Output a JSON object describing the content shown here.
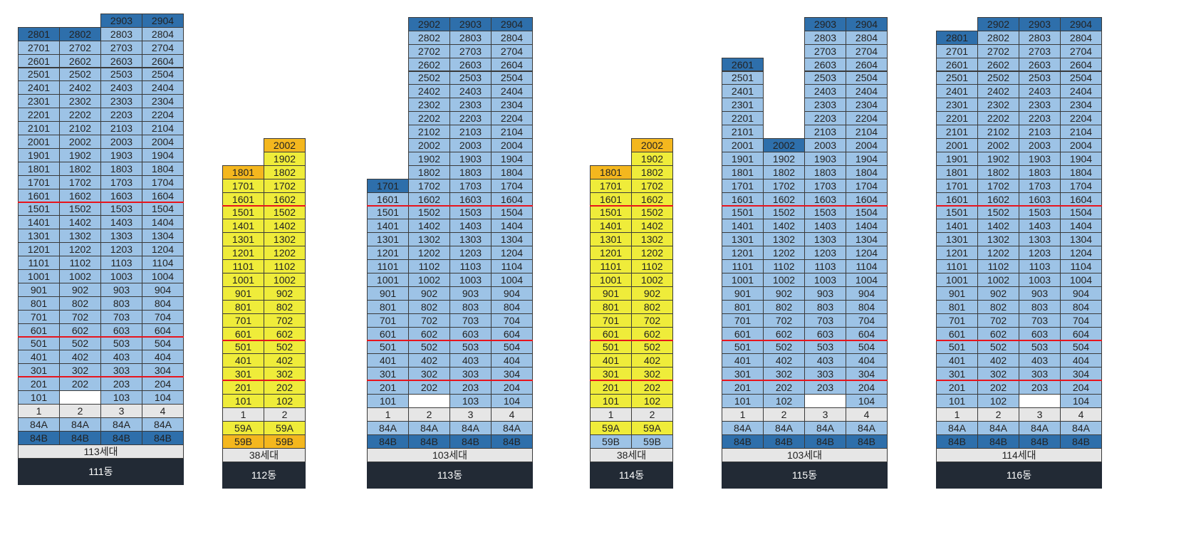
{
  "colors": {
    "unit_light_blue": "#9dc3e6",
    "unit_dark_blue": "#2e6fab",
    "unit_yellow": "#efec3a",
    "unit_orange": "#f4b71e",
    "label_gray": "#e6e6e6",
    "blank": "#ffffff",
    "name_bg": "#222a35",
    "divider_red": "#e8141c"
  },
  "divider_above_floors": [
    15,
    5,
    2
  ],
  "buildings": [
    {
      "name": "111동",
      "households": "113세대",
      "base_color": "unit_light_blue",
      "column_numbers": [
        "1",
        "2",
        "3",
        "4"
      ],
      "column_floors": [
        [
          1,
          28
        ],
        [
          1,
          28
        ],
        [
          1,
          29
        ],
        [
          1,
          29
        ]
      ],
      "highlight": {
        "2801": "unit_dark_blue",
        "2802": "unit_dark_blue",
        "2903": "unit_dark_blue",
        "2904": "unit_dark_blue"
      },
      "blank_units": [
        "102"
      ],
      "type_rows": [
        {
          "labels": [
            "84A",
            "84A",
            "84A",
            "84A"
          ],
          "color": "unit_light_blue"
        },
        {
          "labels": [
            "84B",
            "84B",
            "84B",
            "84B"
          ],
          "color": "unit_dark_blue"
        }
      ]
    },
    {
      "name": "112동",
      "households": "38세대",
      "base_color": "unit_yellow",
      "column_numbers": [
        "1",
        "2"
      ],
      "column_floors": [
        [
          1,
          18
        ],
        [
          1,
          20
        ]
      ],
      "highlight": {
        "1801": "unit_orange",
        "2002": "unit_orange"
      },
      "blank_units": [],
      "type_rows": [
        {
          "labels": [
            "59A",
            "59A"
          ],
          "color": "unit_yellow"
        },
        {
          "labels": [
            "59B",
            "59B"
          ],
          "color": "unit_orange"
        }
      ]
    },
    {
      "name": "113동",
      "households": "103세대",
      "base_color": "unit_light_blue",
      "column_numbers": [
        "1",
        "2",
        "3",
        "4"
      ],
      "column_floors": [
        [
          1,
          17
        ],
        [
          1,
          29
        ],
        [
          1,
          29
        ],
        [
          1,
          29
        ]
      ],
      "highlight": {
        "1701": "unit_dark_blue",
        "2902": "unit_dark_blue",
        "2903": "unit_dark_blue",
        "2904": "unit_dark_blue"
      },
      "blank_units": [
        "102"
      ],
      "type_rows": [
        {
          "labels": [
            "84A",
            "84A",
            "84A",
            "84A"
          ],
          "color": "unit_light_blue"
        },
        {
          "labels": [
            "84B",
            "84B",
            "84B",
            "84B"
          ],
          "color": "unit_dark_blue"
        }
      ]
    },
    {
      "name": "114동",
      "households": "38세대",
      "base_color": "unit_yellow",
      "column_numbers": [
        "1",
        "2"
      ],
      "column_floors": [
        [
          1,
          18
        ],
        [
          1,
          20
        ]
      ],
      "highlight": {
        "1801": "unit_orange",
        "2002": "unit_orange"
      },
      "blank_units": [],
      "type_rows": [
        {
          "labels": [
            "59A",
            "59A"
          ],
          "color": "unit_yellow"
        },
        {
          "labels": [
            "59B",
            "59B"
          ],
          "color": "unit_light_blue"
        }
      ]
    },
    {
      "name": "115동",
      "households": "103세대",
      "base_color": "unit_light_blue",
      "column_numbers": [
        "1",
        "2",
        "3",
        "4"
      ],
      "column_floors": [
        [
          1,
          26
        ],
        [
          1,
          20
        ],
        [
          1,
          29
        ],
        [
          1,
          29
        ]
      ],
      "highlight": {
        "2601": "unit_dark_blue",
        "2002": "unit_dark_blue",
        "2903": "unit_dark_blue",
        "2904": "unit_dark_blue"
      },
      "blank_units": [
        "103"
      ],
      "type_rows": [
        {
          "labels": [
            "84A",
            "84A",
            "84A",
            "84A"
          ],
          "color": "unit_light_blue"
        },
        {
          "labels": [
            "84B",
            "84B",
            "84B",
            "84B"
          ],
          "color": "unit_dark_blue"
        }
      ]
    },
    {
      "name": "116동",
      "households": "114세대",
      "base_color": "unit_light_blue",
      "column_numbers": [
        "1",
        "2",
        "3",
        "4"
      ],
      "column_floors": [
        [
          1,
          28
        ],
        [
          1,
          29
        ],
        [
          1,
          29
        ],
        [
          1,
          29
        ]
      ],
      "highlight": {
        "2801": "unit_dark_blue",
        "2902": "unit_dark_blue",
        "2903": "unit_dark_blue",
        "2904": "unit_dark_blue"
      },
      "blank_units": [
        "103"
      ],
      "type_rows": [
        {
          "labels": [
            "84A",
            "84A",
            "84A",
            "84A"
          ],
          "color": "unit_light_blue"
        },
        {
          "labels": [
            "84B",
            "84B",
            "84B",
            "84B"
          ],
          "color": "unit_dark_blue"
        }
      ]
    }
  ]
}
